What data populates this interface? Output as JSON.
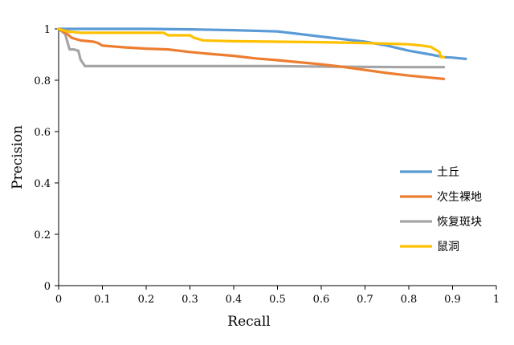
{
  "chart_data": {
    "type": "line",
    "xlabel": "Recall",
    "ylabel": "Precision",
    "xlim": [
      0,
      1
    ],
    "ylim": [
      0,
      1
    ],
    "x_ticks": [
      "0",
      "0.1",
      "0.2",
      "0.3",
      "0.4",
      "0.5",
      "0.6",
      "0.7",
      "0.8",
      "0.9",
      "1"
    ],
    "y_ticks": [
      "0",
      "0.2",
      "0.4",
      "0.6",
      "0.8",
      "1"
    ],
    "grid": false,
    "legend_position": "right",
    "series": [
      {
        "name": "土丘",
        "color": "#5B9BD5",
        "x": [
          0,
          0.1,
          0.2,
          0.3,
          0.4,
          0.5,
          0.55,
          0.6,
          0.65,
          0.7,
          0.75,
          0.8,
          0.85,
          0.88,
          0.9,
          0.93
        ],
        "y": [
          1.0,
          1.0,
          1.0,
          0.998,
          0.995,
          0.99,
          0.98,
          0.97,
          0.96,
          0.95,
          0.935,
          0.915,
          0.9,
          0.89,
          0.888,
          0.883
        ]
      },
      {
        "name": "次生裸地",
        "color": "#ED7D31",
        "x": [
          0,
          0.02,
          0.03,
          0.05,
          0.08,
          0.09,
          0.1,
          0.15,
          0.2,
          0.25,
          0.3,
          0.35,
          0.4,
          0.45,
          0.5,
          0.55,
          0.6,
          0.65,
          0.7,
          0.75,
          0.8,
          0.85,
          0.88
        ],
        "y": [
          1.0,
          0.98,
          0.965,
          0.955,
          0.95,
          0.945,
          0.935,
          0.928,
          0.923,
          0.92,
          0.91,
          0.902,
          0.895,
          0.885,
          0.878,
          0.87,
          0.862,
          0.852,
          0.84,
          0.828,
          0.818,
          0.81,
          0.805
        ]
      },
      {
        "name": "恢复斑块",
        "color": "#A5A5A5",
        "x": [
          0,
          0.015,
          0.02,
          0.025,
          0.035,
          0.045,
          0.05,
          0.06,
          0.1,
          0.3,
          0.5,
          0.6,
          0.7,
          0.8,
          0.88
        ],
        "y": [
          1.0,
          0.98,
          0.95,
          0.92,
          0.92,
          0.915,
          0.88,
          0.855,
          0.855,
          0.855,
          0.855,
          0.853,
          0.852,
          0.851,
          0.851
        ]
      },
      {
        "name": "鼠洞",
        "color": "#FFC000",
        "x": [
          0,
          0.02,
          0.05,
          0.1,
          0.15,
          0.24,
          0.25,
          0.3,
          0.31,
          0.33,
          0.4,
          0.5,
          0.6,
          0.7,
          0.8,
          0.83,
          0.85,
          0.86,
          0.87,
          0.873,
          0.88
        ],
        "y": [
          1.0,
          0.99,
          0.985,
          0.985,
          0.985,
          0.985,
          0.975,
          0.975,
          0.965,
          0.955,
          0.952,
          0.95,
          0.948,
          0.945,
          0.94,
          0.935,
          0.93,
          0.92,
          0.91,
          0.89,
          0.89
        ]
      }
    ]
  }
}
